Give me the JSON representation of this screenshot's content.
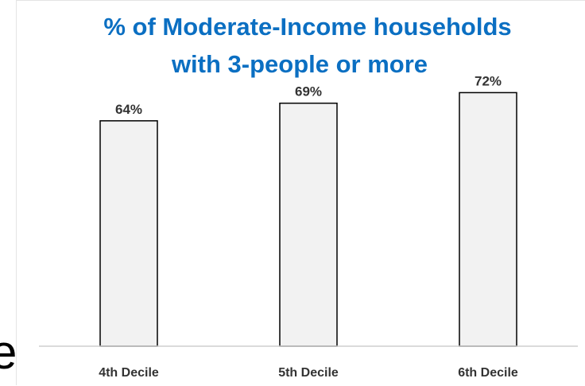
{
  "chart_data": {
    "type": "bar",
    "title": [
      "% of Moderate-Income households",
      "with 3-people or more"
    ],
    "categories": [
      "4th Decile",
      "5th Decile",
      "6th Decile"
    ],
    "values": [
      64,
      69,
      72
    ],
    "data_labels": [
      "64%",
      "69%",
      "72%"
    ],
    "ylim": [
      0,
      80
    ],
    "grid": false,
    "legend": "none",
    "colors": {
      "title": "#0b6fc2",
      "bar_fill": "#f2f2f2",
      "bar_stroke": "#000000",
      "labels": "#333333",
      "axis": "#cfcfcf"
    }
  },
  "edge_glyph": "e"
}
